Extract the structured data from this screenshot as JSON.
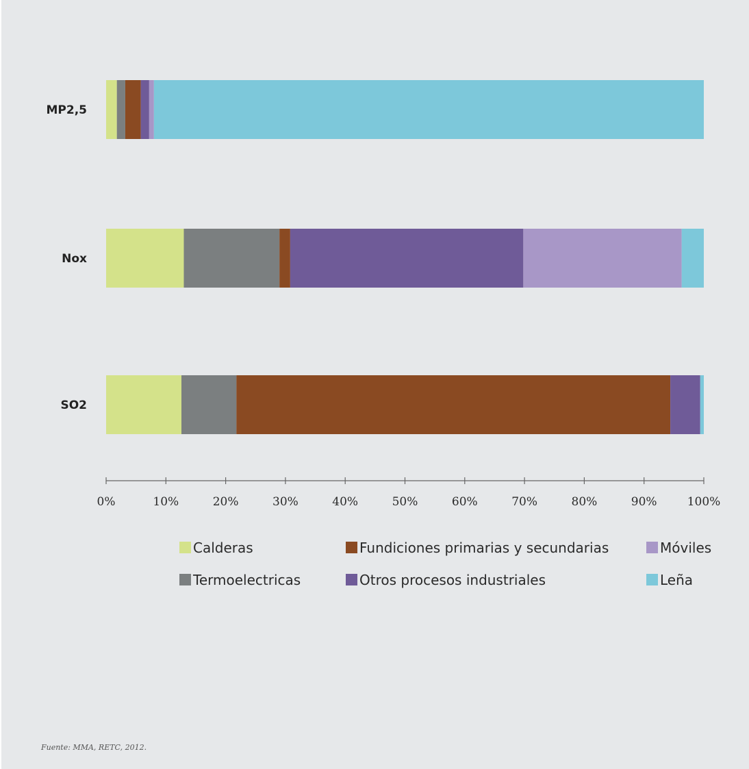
{
  "chart_data": {
    "type": "bar",
    "orientation": "horizontal",
    "stacked": true,
    "percent": true,
    "categories": [
      "MP2,5",
      "Nox",
      "SO2"
    ],
    "series": [
      {
        "name": "Calderas",
        "color": "#d4e28a",
        "values": [
          1.8,
          13.0,
          12.6
        ]
      },
      {
        "name": "Termoelectricas",
        "color": "#7b7f80",
        "values": [
          1.4,
          16.0,
          9.2
        ]
      },
      {
        "name": "Fundiciones primarias y secundarias",
        "color": "#8a4a22",
        "values": [
          2.6,
          1.8,
          72.6
        ]
      },
      {
        "name": "Otros procesos industriales",
        "color": "#6f5b98",
        "values": [
          1.4,
          39.0,
          5.0
        ]
      },
      {
        "name": "Móviles",
        "color": "#a897c7",
        "values": [
          0.8,
          26.5,
          0.0
        ]
      },
      {
        "name": "Leña",
        "color": "#7dc8da",
        "values": [
          92.0,
          3.7,
          0.6
        ]
      }
    ],
    "xlim": [
      0,
      100
    ],
    "xticks": [
      "0%",
      "10%",
      "20%",
      "30%",
      "40%",
      "50%",
      "60%",
      "70%",
      "80%",
      "90%",
      "100%"
    ],
    "legend_rows": [
      [
        "Calderas",
        "Fundiciones primarias y secundarias",
        "Móviles"
      ],
      [
        "Termoelectricas",
        "Otros procesos industriales",
        "Leña"
      ]
    ],
    "grid": false,
    "legend_position": "bottom"
  },
  "source": "Fuente: MMA, RETC, 2012."
}
